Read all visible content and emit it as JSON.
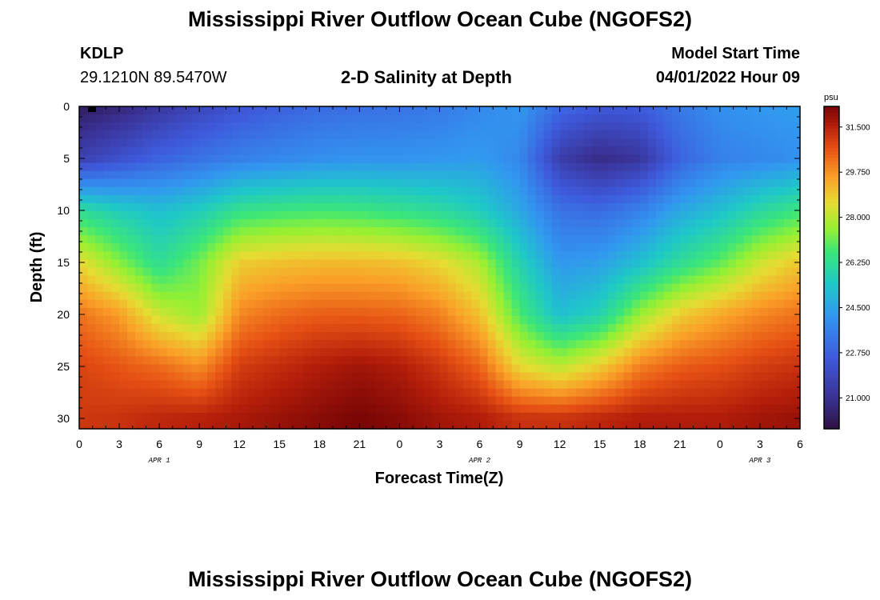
{
  "header": {
    "title": "Mississippi River Outflow Ocean Cube (NGOFS2)",
    "station_id": "KDLP",
    "station_coords": "29.1210N  89.5470W",
    "subtitle": "2-D Salinity at Depth",
    "model_start_label": "Model Start Time",
    "model_start_value": "04/01/2022 Hour 09"
  },
  "footer": {
    "title": "Mississippi River Outflow Ocean Cube (NGOFS2)"
  },
  "chart_data": {
    "type": "heatmap",
    "title": "2-D Salinity at Depth",
    "xlabel": "Forecast Time(Z)",
    "ylabel": "Depth (ft)",
    "x_ticks": [
      "0",
      "3",
      "6",
      "9",
      "12",
      "15",
      "18",
      "21",
      "0",
      "3",
      "6",
      "9",
      "12",
      "15",
      "18",
      "21",
      "0",
      "3",
      "6"
    ],
    "date_labels": [
      {
        "label": "APR 1",
        "tick_index": 2
      },
      {
        "label": "APR 2",
        "tick_index": 10
      },
      {
        "label": "APR 3",
        "tick_index": 17
      }
    ],
    "x_range_hours": [
      0,
      54
    ],
    "y_ticks": [
      0,
      5,
      10,
      15,
      20,
      25,
      30
    ],
    "ylim": [
      0,
      31
    ],
    "y_inverted": true,
    "colorbar": {
      "unit": "psu",
      "min": 19.8,
      "max": 32.3,
      "tick_values": [
        31.5,
        29.75,
        28.0,
        26.25,
        24.5,
        22.75,
        21.0
      ],
      "tick_labels": [
        "31.500",
        "29.750",
        "28.000",
        "26.250",
        "24.500",
        "22.750",
        "21.000"
      ]
    },
    "salinity_grid": {
      "hours": [
        0,
        3,
        6,
        9,
        12,
        15,
        18,
        21,
        24,
        27,
        30,
        33,
        36,
        39,
        42,
        45,
        48,
        51,
        54
      ],
      "depths": [
        0,
        5,
        10,
        15,
        20,
        25,
        30
      ],
      "values": [
        [
          20.2,
          20.6,
          21.2,
          21.8,
          22.3,
          22.7,
          23.0,
          23.1,
          23.2,
          23.4,
          23.8,
          24.2,
          23.0,
          22.5,
          22.6,
          23.4,
          24.0,
          24.2,
          24.4
        ],
        [
          21.6,
          22.2,
          22.8,
          23.2,
          23.6,
          23.8,
          24.0,
          24.1,
          24.1,
          24.2,
          24.3,
          23.8,
          21.5,
          20.8,
          21.2,
          22.8,
          23.6,
          23.8,
          24.0
        ],
        [
          26.2,
          25.6,
          25.2,
          25.6,
          26.4,
          26.6,
          26.7,
          26.6,
          26.4,
          26.1,
          25.6,
          24.6,
          23.2,
          23.0,
          23.6,
          24.6,
          25.2,
          26.0,
          26.6
        ],
        [
          28.6,
          27.4,
          26.2,
          27.2,
          28.8,
          29.0,
          29.1,
          29.1,
          29.0,
          28.6,
          27.8,
          25.8,
          24.2,
          24.4,
          25.2,
          26.2,
          27.0,
          28.2,
          28.9
        ],
        [
          30.2,
          29.6,
          28.2,
          27.6,
          29.9,
          30.3,
          30.5,
          30.5,
          30.4,
          30.0,
          29.0,
          26.8,
          25.2,
          25.8,
          27.6,
          28.8,
          29.4,
          29.9,
          30.2
        ],
        [
          30.9,
          30.6,
          30.3,
          29.8,
          31.0,
          31.3,
          31.6,
          31.8,
          31.6,
          31.1,
          30.4,
          28.6,
          28.0,
          28.8,
          30.0,
          30.5,
          30.7,
          31.0,
          31.2
        ],
        [
          31.1,
          31.2,
          31.4,
          31.5,
          31.7,
          31.9,
          32.1,
          32.3,
          32.1,
          31.8,
          31.6,
          31.2,
          31.2,
          31.4,
          31.6,
          31.6,
          31.6,
          31.8,
          31.9
        ]
      ]
    },
    "colors": {
      "frame": "#000000",
      "marker": "#000000"
    }
  }
}
